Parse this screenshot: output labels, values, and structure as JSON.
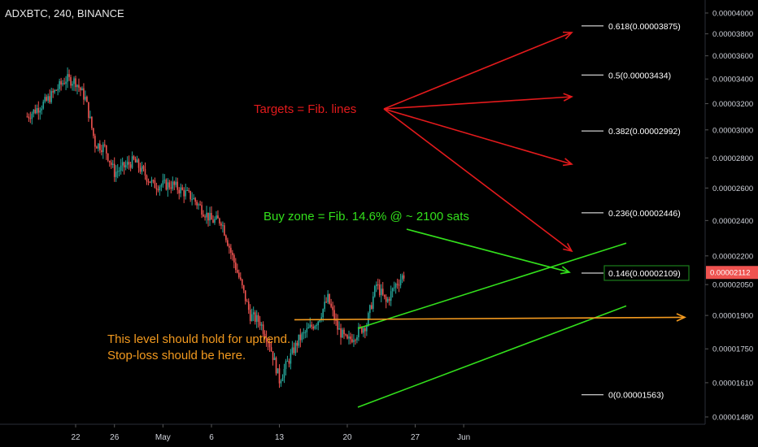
{
  "symbol_title": "ADXBTC, 240, BINANCE",
  "colors": {
    "background": "#000000",
    "candle_up": "#26a69a",
    "candle_down": "#ef5350",
    "axis_text": "#d1d4dc",
    "red_annotation": "#e31a1c",
    "green_annotation": "#33e01c",
    "orange_annotation": "#f39a1f",
    "fib_line": "#ffffff",
    "price_label_bg": "#ef5350",
    "fib146_box": "#1b7d1b"
  },
  "chart_data": {
    "type": "candlestick",
    "title": "ADXBTC, 240, BINANCE",
    "y_axis_ticks": [
      "0.00004000",
      "0.00003800",
      "0.00003600",
      "0.00003400",
      "0.00003200",
      "0.00003000",
      "0.00002800",
      "0.00002600",
      "0.00002400",
      "0.00002200",
      "0.00002050",
      "0.00001900",
      "0.00001750",
      "0.00001610",
      "0.00001480"
    ],
    "y_scale": "log",
    "x_axis_ticks": [
      "22",
      "26",
      "May",
      "6",
      "13",
      "20",
      "27",
      "Jun"
    ],
    "current_price": "0.00002112",
    "approx_price_path": [
      {
        "date": "Apr 17",
        "close": 3.1e-05
      },
      {
        "date": "Apr 19",
        "close": 3.22e-05
      },
      {
        "date": "Apr 21",
        "close": 3.4e-05
      },
      {
        "date": "Apr 22",
        "close": 3.38e-05
      },
      {
        "date": "Apr 23",
        "close": 3.24e-05
      },
      {
        "date": "Apr 24",
        "close": 2.9e-05
      },
      {
        "date": "Apr 25",
        "close": 2.87e-05
      },
      {
        "date": "Apr 26",
        "close": 2.7e-05
      },
      {
        "date": "Apr 28",
        "close": 2.78e-05
      },
      {
        "date": "Apr 30",
        "close": 2.62e-05
      },
      {
        "date": "May 2",
        "close": 2.62e-05
      },
      {
        "date": "May 4",
        "close": 2.54e-05
      },
      {
        "date": "May 6",
        "close": 2.4e-05
      },
      {
        "date": "May 7",
        "close": 2.4e-05
      },
      {
        "date": "May 8",
        "close": 2.22e-05
      },
      {
        "date": "May 10",
        "close": 1.9e-05
      },
      {
        "date": "May 11",
        "close": 1.87e-05
      },
      {
        "date": "May 12",
        "close": 1.77e-05
      },
      {
        "date": "May 13",
        "close": 1.62e-05
      },
      {
        "date": "May 15",
        "close": 1.79e-05
      },
      {
        "date": "May 17",
        "close": 1.88e-05
      },
      {
        "date": "May 18",
        "close": 1.98e-05
      },
      {
        "date": "May 19",
        "close": 1.84e-05
      },
      {
        "date": "May 20",
        "close": 1.78e-05
      },
      {
        "date": "May 22",
        "close": 1.86e-05
      },
      {
        "date": "May 23",
        "close": 2.05e-05
      },
      {
        "date": "May 24",
        "close": 1.96e-05
      },
      {
        "date": "May 25",
        "close": 2.05e-05
      },
      {
        "date": "May 26",
        "close": 2.11e-05
      }
    ],
    "fib_levels": [
      {
        "label": "0.618(0.00003875)",
        "price": 3.875e-05
      },
      {
        "label": "0.5(0.00003434)",
        "price": 3.434e-05
      },
      {
        "label": "0.382(0.00002992)",
        "price": 2.992e-05
      },
      {
        "label": "0.236(0.00002446)",
        "price": 2.446e-05
      },
      {
        "label": "0.146(0.00002109)",
        "price": 2.109e-05
      },
      {
        "label": "0(0.00001563)",
        "price": 1.563e-05
      }
    ],
    "annotations": {
      "targets": "Targets = Fib. lines",
      "buy_zone": "Buy zone = Fib. 14.6% @ ~ 2100 sats",
      "support_line1": "This level should hold for uptrend.",
      "support_line2": "Stop-loss should be here."
    }
  }
}
